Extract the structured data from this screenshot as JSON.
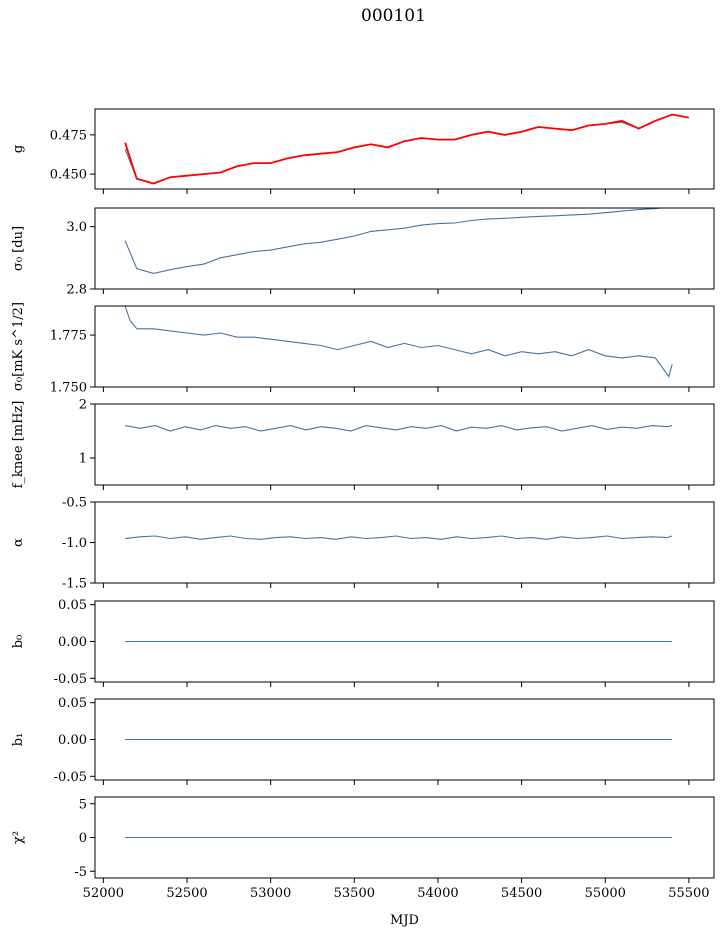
{
  "figure_title": "000101",
  "xlabel": "MJD",
  "chart_data": [
    {
      "type": "line",
      "ylabel": "g",
      "xlim": [
        51950,
        55650
      ],
      "ylim": [
        0.4405,
        0.4915
      ],
      "yticks": [
        "0.450",
        "0.475"
      ],
      "ytick_values": [
        0.45,
        0.475
      ],
      "xticks": [
        52000,
        52500,
        53000,
        53500,
        54000,
        54500,
        55000,
        55500
      ],
      "series": [
        {
          "color": "#4c72a0",
          "x": [
            52130,
            52200,
            52300,
            52400,
            52500,
            52600,
            52700,
            52800,
            52900,
            53000,
            53100,
            53200,
            53300,
            53400,
            53500,
            53600,
            53700,
            53800,
            53900,
            54000,
            54100,
            54200,
            54300,
            54400,
            54500,
            54600,
            54700,
            54800,
            54900,
            55000,
            55100,
            55200,
            55300,
            55400
          ],
          "values": [
            0.466,
            0.447,
            0.444,
            0.448,
            0.449,
            0.45,
            0.451,
            0.455,
            0.457,
            0.457,
            0.46,
            0.462,
            0.463,
            0.464,
            0.467,
            0.469,
            0.467,
            0.471,
            0.473,
            0.472,
            0.472,
            0.475,
            0.477,
            0.475,
            0.477,
            0.48,
            0.479,
            0.478,
            0.481,
            0.482,
            0.483,
            0.479,
            0.484,
            0.488
          ]
        },
        {
          "color": "#ff0000",
          "x": [
            52130,
            52200,
            52300,
            52400,
            52500,
            52600,
            52700,
            52800,
            52900,
            53000,
            53100,
            53200,
            53300,
            53400,
            53500,
            53600,
            53700,
            53800,
            53900,
            54000,
            54100,
            54200,
            54300,
            54400,
            54500,
            54600,
            54700,
            54800,
            54900,
            55000,
            55100,
            55200,
            55300,
            55400,
            55500
          ],
          "values": [
            0.47,
            0.447,
            0.444,
            0.448,
            0.449,
            0.45,
            0.451,
            0.455,
            0.457,
            0.457,
            0.46,
            0.462,
            0.463,
            0.464,
            0.467,
            0.469,
            0.467,
            0.471,
            0.473,
            0.472,
            0.472,
            0.475,
            0.477,
            0.475,
            0.477,
            0.48,
            0.479,
            0.478,
            0.481,
            0.482,
            0.484,
            0.479,
            0.484,
            0.488,
            0.486
          ]
        }
      ]
    },
    {
      "type": "line",
      "ylabel": "σ₀ [du]",
      "xlim": [
        51950,
        55650
      ],
      "ylim": [
        2.8,
        3.06
      ],
      "yticks": [
        "2.8",
        "3.0"
      ],
      "ytick_values": [
        2.8,
        3.0
      ],
      "xticks": [
        52000,
        52500,
        53000,
        53500,
        54000,
        54500,
        55000,
        55500
      ],
      "series": [
        {
          "color": "#4c72a0",
          "x": [
            52130,
            52200,
            52300,
            52400,
            52500,
            52600,
            52700,
            52800,
            52900,
            53000,
            53100,
            53200,
            53300,
            53400,
            53500,
            53600,
            53700,
            53800,
            53900,
            54000,
            54100,
            54200,
            54300,
            54400,
            54500,
            54600,
            54700,
            54800,
            54900,
            55000,
            55100,
            55200,
            55300,
            55400
          ],
          "values": [
            2.955,
            2.865,
            2.85,
            2.862,
            2.872,
            2.88,
            2.9,
            2.91,
            2.92,
            2.925,
            2.935,
            2.945,
            2.95,
            2.96,
            2.97,
            2.985,
            2.99,
            2.995,
            3.005,
            3.01,
            3.012,
            3.02,
            3.025,
            3.027,
            3.03,
            3.033,
            3.035,
            3.038,
            3.04,
            3.045,
            3.05,
            3.055,
            3.058,
            3.065
          ]
        }
      ]
    },
    {
      "type": "line",
      "ylabel": "σ₀[mK s^1/2]",
      "xlim": [
        51950,
        55650
      ],
      "ylim": [
        1.75,
        1.789
      ],
      "yticks": [
        "1.750",
        "1.775"
      ],
      "ytick_values": [
        1.75,
        1.775
      ],
      "xticks": [
        52000,
        52500,
        53000,
        53500,
        54000,
        54500,
        55000,
        55500
      ],
      "series": [
        {
          "color": "#4c72a0",
          "x": [
            52130,
            52160,
            52200,
            52300,
            52400,
            52500,
            52600,
            52700,
            52800,
            52900,
            53000,
            53100,
            53200,
            53300,
            53400,
            53500,
            53600,
            53700,
            53800,
            53900,
            54000,
            54100,
            54200,
            54300,
            54400,
            54500,
            54600,
            54700,
            54800,
            54900,
            55000,
            55100,
            55200,
            55300,
            55380,
            55400
          ],
          "values": [
            1.789,
            1.782,
            1.778,
            1.778,
            1.777,
            1.776,
            1.775,
            1.776,
            1.774,
            1.774,
            1.773,
            1.772,
            1.771,
            1.77,
            1.768,
            1.77,
            1.772,
            1.769,
            1.771,
            1.769,
            1.77,
            1.768,
            1.766,
            1.768,
            1.765,
            1.767,
            1.766,
            1.767,
            1.765,
            1.768,
            1.765,
            1.764,
            1.765,
            1.764,
            1.755,
            1.761
          ]
        }
      ]
    },
    {
      "type": "line",
      "ylabel": "f_knee [mHz]",
      "xlim": [
        51950,
        55650
      ],
      "ylim": [
        0.5,
        2.0
      ],
      "yticks": [
        "1",
        "2"
      ],
      "ytick_values": [
        1,
        2
      ],
      "xticks": [
        52000,
        52500,
        53000,
        53500,
        54000,
        54500,
        55000,
        55500
      ],
      "series": [
        {
          "color": "#4c72a0",
          "x": [
            52130,
            52220,
            52310,
            52400,
            52490,
            52580,
            52670,
            52760,
            52850,
            52940,
            53030,
            53120,
            53210,
            53300,
            53390,
            53480,
            53570,
            53660,
            53750,
            53840,
            53930,
            54020,
            54110,
            54200,
            54290,
            54380,
            54470,
            54560,
            54650,
            54740,
            54830,
            54920,
            55010,
            55100,
            55190,
            55280,
            55370,
            55400
          ],
          "values": [
            1.6,
            1.55,
            1.6,
            1.5,
            1.58,
            1.52,
            1.6,
            1.55,
            1.58,
            1.5,
            1.55,
            1.6,
            1.52,
            1.58,
            1.55,
            1.5,
            1.6,
            1.56,
            1.52,
            1.58,
            1.55,
            1.6,
            1.5,
            1.57,
            1.55,
            1.6,
            1.52,
            1.56,
            1.58,
            1.5,
            1.55,
            1.6,
            1.53,
            1.57,
            1.55,
            1.6,
            1.58,
            1.6
          ]
        }
      ]
    },
    {
      "type": "line",
      "ylabel": "α",
      "xlim": [
        51950,
        55650
      ],
      "ylim": [
        -1.5,
        -0.5
      ],
      "yticks": [
        "-1.5",
        "-1.0",
        "-0.5"
      ],
      "ytick_values": [
        -1.5,
        -1.0,
        -0.5
      ],
      "xticks": [
        52000,
        52500,
        53000,
        53500,
        54000,
        54500,
        55000,
        55500
      ],
      "series": [
        {
          "color": "#4c72a0",
          "x": [
            52130,
            52220,
            52310,
            52400,
            52490,
            52580,
            52670,
            52760,
            52850,
            52940,
            53030,
            53120,
            53210,
            53300,
            53390,
            53480,
            53570,
            53660,
            53750,
            53840,
            53930,
            54020,
            54110,
            54200,
            54290,
            54380,
            54470,
            54560,
            54650,
            54740,
            54830,
            54920,
            55010,
            55100,
            55190,
            55280,
            55370,
            55400
          ],
          "values": [
            -0.95,
            -0.93,
            -0.92,
            -0.95,
            -0.93,
            -0.96,
            -0.94,
            -0.92,
            -0.95,
            -0.96,
            -0.94,
            -0.93,
            -0.95,
            -0.94,
            -0.96,
            -0.93,
            -0.95,
            -0.94,
            -0.92,
            -0.95,
            -0.94,
            -0.96,
            -0.93,
            -0.95,
            -0.94,
            -0.92,
            -0.95,
            -0.94,
            -0.96,
            -0.93,
            -0.95,
            -0.94,
            -0.92,
            -0.95,
            -0.94,
            -0.93,
            -0.94,
            -0.92
          ]
        }
      ]
    },
    {
      "type": "line",
      "ylabel": "b₀",
      "xlim": [
        51950,
        55650
      ],
      "ylim": [
        -0.055,
        0.055
      ],
      "yticks": [
        "-0.05",
        "0.00",
        "0.05"
      ],
      "ytick_values": [
        -0.05,
        0.0,
        0.05
      ],
      "xticks": [
        52000,
        52500,
        53000,
        53500,
        54000,
        54500,
        55000,
        55500
      ],
      "series": [
        {
          "color": "#4c72a0",
          "x": [
            52130,
            55400
          ],
          "values": [
            0,
            0
          ]
        }
      ]
    },
    {
      "type": "line",
      "ylabel": "b₁",
      "xlim": [
        51950,
        55650
      ],
      "ylim": [
        -0.055,
        0.055
      ],
      "yticks": [
        "-0.05",
        "0.00",
        "0.05"
      ],
      "ytick_values": [
        -0.05,
        0.0,
        0.05
      ],
      "xticks": [
        52000,
        52500,
        53000,
        53500,
        54000,
        54500,
        55000,
        55500
      ],
      "series": [
        {
          "color": "#4c72a0",
          "x": [
            52130,
            55400
          ],
          "values": [
            0,
            0
          ]
        }
      ]
    },
    {
      "type": "line",
      "ylabel": "χ²",
      "xlim": [
        51950,
        55650
      ],
      "ylim": [
        -6,
        6
      ],
      "yticks": [
        "-5",
        "0",
        "5"
      ],
      "ytick_values": [
        -5,
        0,
        5
      ],
      "xticks": [
        52000,
        52500,
        53000,
        53500,
        54000,
        54500,
        55000,
        55500
      ],
      "xticklabels": [
        "52000",
        "52500",
        "53000",
        "53500",
        "54000",
        "54500",
        "55000",
        "55500"
      ],
      "series": [
        {
          "color": "#4c72a0",
          "x": [
            52130,
            55400
          ],
          "values": [
            0,
            0
          ]
        }
      ]
    }
  ]
}
